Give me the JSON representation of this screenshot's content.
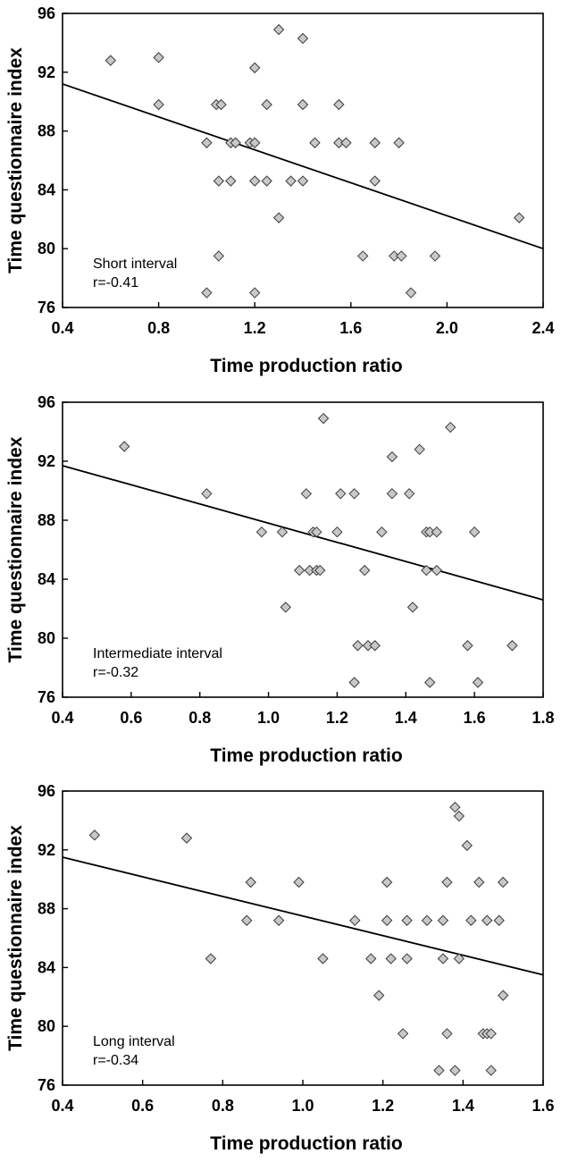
{
  "chart_data": [
    {
      "type": "scatter",
      "title": "",
      "xlabel": "Time production ratio",
      "ylabel": "Time questionnaire index",
      "xlim": [
        0.4,
        2.4
      ],
      "ylim": [
        76,
        96
      ],
      "xticks": [
        0.4,
        0.8,
        1.2,
        1.6,
        2.0,
        2.4
      ],
      "xtick_labels": [
        "0.4",
        "0.8",
        "1.2",
        "1.6",
        "2.0",
        "2.4"
      ],
      "yticks": [
        76,
        80,
        84,
        88,
        92,
        96
      ],
      "ytick_labels": [
        "76",
        "80",
        "84",
        "88",
        "92",
        "96"
      ],
      "annotation": [
        "Short interval",
        "r=-0.41"
      ],
      "grid": false,
      "trendline": {
        "x": [
          0.4,
          2.4
        ],
        "y": [
          91.2,
          80.0
        ]
      },
      "points": [
        [
          0.6,
          92.8
        ],
        [
          0.8,
          93.0
        ],
        [
          0.8,
          89.8
        ],
        [
          1.3,
          94.9
        ],
        [
          1.4,
          94.3
        ],
        [
          1.2,
          92.3
        ],
        [
          1.04,
          89.8
        ],
        [
          1.06,
          89.8
        ],
        [
          1.25,
          89.8
        ],
        [
          1.4,
          89.8
        ],
        [
          1.55,
          89.8
        ],
        [
          1.0,
          87.2
        ],
        [
          1.1,
          87.2
        ],
        [
          1.12,
          87.2
        ],
        [
          1.18,
          87.2
        ],
        [
          1.2,
          87.2
        ],
        [
          1.45,
          87.2
        ],
        [
          1.55,
          87.2
        ],
        [
          1.58,
          87.2
        ],
        [
          1.7,
          87.2
        ],
        [
          1.8,
          87.2
        ],
        [
          1.05,
          84.6
        ],
        [
          1.1,
          84.6
        ],
        [
          1.2,
          84.6
        ],
        [
          1.25,
          84.6
        ],
        [
          1.35,
          84.6
        ],
        [
          1.4,
          84.6
        ],
        [
          1.7,
          84.6
        ],
        [
          1.3,
          82.1
        ],
        [
          2.3,
          82.1
        ],
        [
          1.05,
          79.5
        ],
        [
          1.65,
          79.5
        ],
        [
          1.78,
          79.5
        ],
        [
          1.81,
          79.5
        ],
        [
          1.95,
          79.5
        ],
        [
          1.0,
          77.0
        ],
        [
          1.2,
          77.0
        ],
        [
          1.85,
          77.0
        ]
      ]
    },
    {
      "type": "scatter",
      "title": "",
      "xlabel": "Time production ratio",
      "ylabel": "Time questionnaire index",
      "xlim": [
        0.4,
        1.8
      ],
      "ylim": [
        76,
        96
      ],
      "xticks": [
        0.4,
        0.6,
        0.8,
        1.0,
        1.2,
        1.4,
        1.6,
        1.8
      ],
      "xtick_labels": [
        "0.4",
        "0.6",
        "0.8",
        "1.0",
        "1.2",
        "1.4",
        "1.6",
        "1.8"
      ],
      "yticks": [
        76,
        80,
        84,
        88,
        92,
        96
      ],
      "ytick_labels": [
        "76",
        "80",
        "84",
        "88",
        "92",
        "96"
      ],
      "annotation": [
        "Intermediate interval",
        "r=-0.32"
      ],
      "grid": false,
      "trendline": {
        "x": [
          0.4,
          1.8
        ],
        "y": [
          91.7,
          82.6
        ]
      },
      "points": [
        [
          0.58,
          93.0
        ],
        [
          1.16,
          94.9
        ],
        [
          1.53,
          94.3
        ],
        [
          1.44,
          92.8
        ],
        [
          1.36,
          92.3
        ],
        [
          0.82,
          89.8
        ],
        [
          1.11,
          89.8
        ],
        [
          1.21,
          89.8
        ],
        [
          1.25,
          89.8
        ],
        [
          1.36,
          89.8
        ],
        [
          1.41,
          89.8
        ],
        [
          0.98,
          87.2
        ],
        [
          1.04,
          87.2
        ],
        [
          1.13,
          87.2
        ],
        [
          1.14,
          87.2
        ],
        [
          1.2,
          87.2
        ],
        [
          1.33,
          87.2
        ],
        [
          1.46,
          87.2
        ],
        [
          1.47,
          87.2
        ],
        [
          1.49,
          87.2
        ],
        [
          1.6,
          87.2
        ],
        [
          1.09,
          84.6
        ],
        [
          1.12,
          84.6
        ],
        [
          1.14,
          84.6
        ],
        [
          1.15,
          84.6
        ],
        [
          1.28,
          84.6
        ],
        [
          1.46,
          84.6
        ],
        [
          1.49,
          84.6
        ],
        [
          1.05,
          82.1
        ],
        [
          1.42,
          82.1
        ],
        [
          1.26,
          79.5
        ],
        [
          1.29,
          79.5
        ],
        [
          1.31,
          79.5
        ],
        [
          1.58,
          79.5
        ],
        [
          1.71,
          79.5
        ],
        [
          1.25,
          77.0
        ],
        [
          1.47,
          77.0
        ],
        [
          1.61,
          77.0
        ]
      ]
    },
    {
      "type": "scatter",
      "title": "",
      "xlabel": "Time production ratio",
      "ylabel": "Time questionnaire index",
      "xlim": [
        0.4,
        1.6
      ],
      "ylim": [
        76,
        96
      ],
      "xticks": [
        0.4,
        0.6,
        0.8,
        1.0,
        1.2,
        1.4,
        1.6
      ],
      "xtick_labels": [
        "0.4",
        "0.6",
        "0.8",
        "1.0",
        "1.2",
        "1.4",
        "1.6"
      ],
      "yticks": [
        76,
        80,
        84,
        88,
        92,
        96
      ],
      "ytick_labels": [
        "76",
        "80",
        "84",
        "88",
        "92",
        "96"
      ],
      "annotation": [
        "Long interval",
        "r=-0.34"
      ],
      "grid": false,
      "trendline": {
        "x": [
          0.4,
          1.6
        ],
        "y": [
          91.5,
          83.5
        ]
      },
      "points": [
        [
          0.48,
          93.0
        ],
        [
          0.71,
          92.8
        ],
        [
          1.38,
          94.9
        ],
        [
          1.39,
          94.3
        ],
        [
          1.41,
          92.3
        ],
        [
          0.87,
          89.8
        ],
        [
          0.99,
          89.8
        ],
        [
          1.21,
          89.8
        ],
        [
          1.36,
          89.8
        ],
        [
          1.44,
          89.8
        ],
        [
          1.5,
          89.8
        ],
        [
          0.86,
          87.2
        ],
        [
          0.94,
          87.2
        ],
        [
          1.13,
          87.2
        ],
        [
          1.21,
          87.2
        ],
        [
          1.26,
          87.2
        ],
        [
          1.31,
          87.2
        ],
        [
          1.35,
          87.2
        ],
        [
          1.42,
          87.2
        ],
        [
          1.46,
          87.2
        ],
        [
          1.49,
          87.2
        ],
        [
          0.77,
          84.6
        ],
        [
          1.05,
          84.6
        ],
        [
          1.17,
          84.6
        ],
        [
          1.22,
          84.6
        ],
        [
          1.26,
          84.6
        ],
        [
          1.35,
          84.6
        ],
        [
          1.39,
          84.6
        ],
        [
          1.19,
          82.1
        ],
        [
          1.5,
          82.1
        ],
        [
          1.25,
          79.5
        ],
        [
          1.36,
          79.5
        ],
        [
          1.45,
          79.5
        ],
        [
          1.46,
          79.5
        ],
        [
          1.47,
          79.5
        ],
        [
          1.34,
          77.0
        ],
        [
          1.38,
          77.0
        ],
        [
          1.47,
          77.0
        ]
      ]
    }
  ],
  "colors": {
    "marker_fill": "#c8c8c8",
    "marker_stroke": "#3c3c3c",
    "line": "#000000",
    "axis": "#000000"
  }
}
